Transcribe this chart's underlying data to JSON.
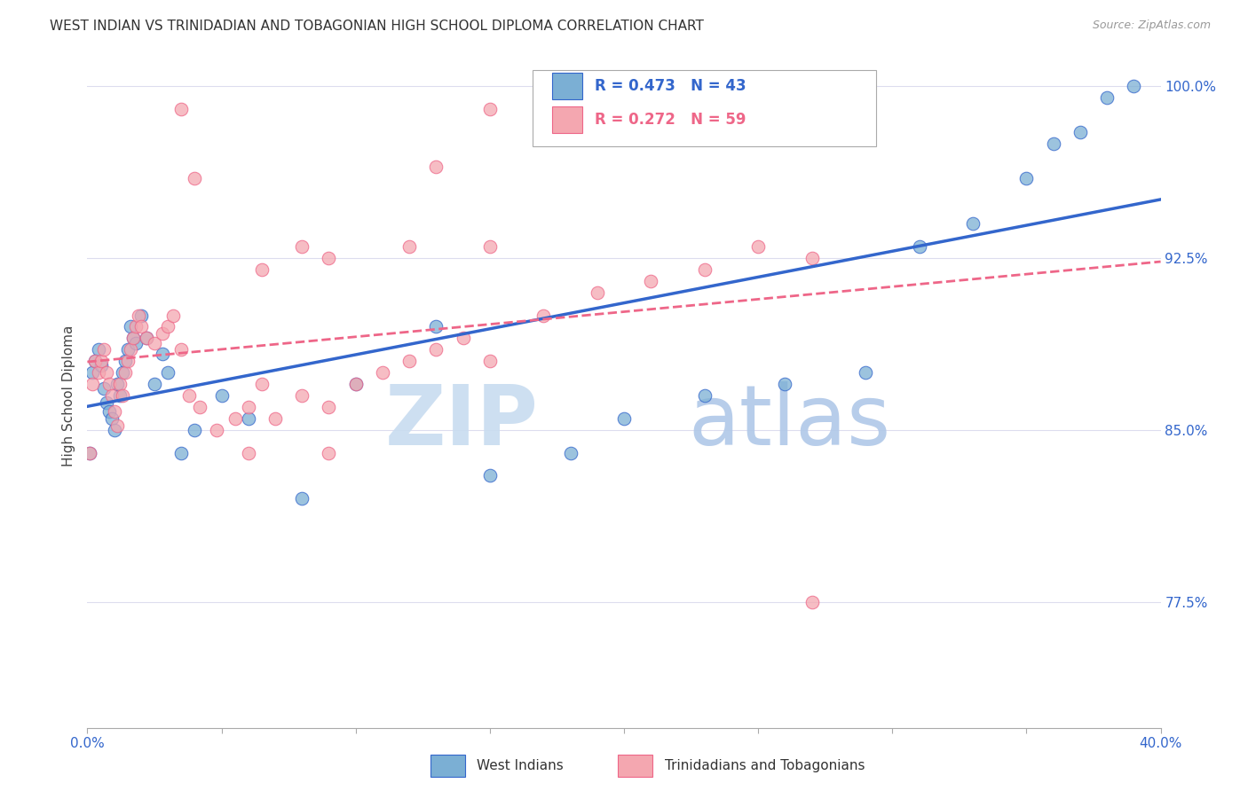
{
  "title": "WEST INDIAN VS TRINIDADIAN AND TOBAGONIAN HIGH SCHOOL DIPLOMA CORRELATION CHART",
  "source": "Source: ZipAtlas.com",
  "ylabel": "High School Diploma",
  "xlim": [
    0.0,
    0.4
  ],
  "ylim": [
    0.72,
    1.01
  ],
  "xticks": [
    0.0,
    0.05,
    0.1,
    0.15,
    0.2,
    0.25,
    0.3,
    0.35,
    0.4
  ],
  "ytick_positions": [
    0.775,
    0.85,
    0.925,
    1.0
  ],
  "ytick_labels": [
    "77.5%",
    "85.0%",
    "92.5%",
    "100.0%"
  ],
  "blue_color": "#7BAFD4",
  "pink_color": "#F4A7B0",
  "blue_line_color": "#3366CC",
  "pink_line_color": "#EE6688",
  "R_blue": 0.473,
  "N_blue": 43,
  "R_pink": 0.272,
  "N_pink": 59,
  "legend_label_blue": "West Indians",
  "legend_label_pink": "Trinidadians and Tobagonians",
  "watermark_zip": "ZIP",
  "watermark_atlas": "atlas",
  "blue_x": [
    0.001,
    0.002,
    0.003,
    0.004,
    0.005,
    0.006,
    0.007,
    0.008,
    0.009,
    0.01,
    0.011,
    0.012,
    0.013,
    0.014,
    0.015,
    0.016,
    0.017,
    0.018,
    0.02,
    0.022,
    0.025,
    0.028,
    0.03,
    0.035,
    0.04,
    0.05,
    0.06,
    0.08,
    0.1,
    0.13,
    0.15,
    0.18,
    0.2,
    0.23,
    0.26,
    0.29,
    0.31,
    0.33,
    0.35,
    0.36,
    0.37,
    0.38,
    0.39
  ],
  "blue_y": [
    0.84,
    0.875,
    0.88,
    0.885,
    0.878,
    0.868,
    0.862,
    0.858,
    0.855,
    0.85,
    0.87,
    0.865,
    0.875,
    0.88,
    0.885,
    0.895,
    0.89,
    0.888,
    0.9,
    0.89,
    0.87,
    0.883,
    0.875,
    0.84,
    0.85,
    0.865,
    0.855,
    0.82,
    0.87,
    0.895,
    0.83,
    0.84,
    0.855,
    0.865,
    0.87,
    0.875,
    0.93,
    0.94,
    0.96,
    0.975,
    0.98,
    0.995,
    1.0
  ],
  "pink_x": [
    0.001,
    0.002,
    0.003,
    0.004,
    0.005,
    0.006,
    0.007,
    0.008,
    0.009,
    0.01,
    0.011,
    0.012,
    0.013,
    0.014,
    0.015,
    0.016,
    0.017,
    0.018,
    0.019,
    0.02,
    0.022,
    0.025,
    0.028,
    0.03,
    0.032,
    0.035,
    0.038,
    0.042,
    0.048,
    0.055,
    0.06,
    0.065,
    0.07,
    0.08,
    0.09,
    0.1,
    0.11,
    0.12,
    0.13,
    0.14,
    0.065,
    0.12,
    0.09,
    0.15,
    0.17,
    0.19,
    0.21,
    0.23,
    0.25,
    0.27,
    0.08,
    0.15,
    0.09,
    0.13,
    0.035,
    0.06,
    0.04,
    0.15,
    0.27
  ],
  "pink_y": [
    0.84,
    0.87,
    0.88,
    0.875,
    0.88,
    0.885,
    0.875,
    0.87,
    0.865,
    0.858,
    0.852,
    0.87,
    0.865,
    0.875,
    0.88,
    0.885,
    0.89,
    0.895,
    0.9,
    0.895,
    0.89,
    0.888,
    0.892,
    0.895,
    0.9,
    0.885,
    0.865,
    0.86,
    0.85,
    0.855,
    0.86,
    0.87,
    0.855,
    0.865,
    0.86,
    0.87,
    0.875,
    0.88,
    0.885,
    0.89,
    0.92,
    0.93,
    0.925,
    0.88,
    0.9,
    0.91,
    0.915,
    0.92,
    0.93,
    0.925,
    0.93,
    0.99,
    0.84,
    0.965,
    0.99,
    0.84,
    0.96,
    0.93,
    0.775
  ]
}
